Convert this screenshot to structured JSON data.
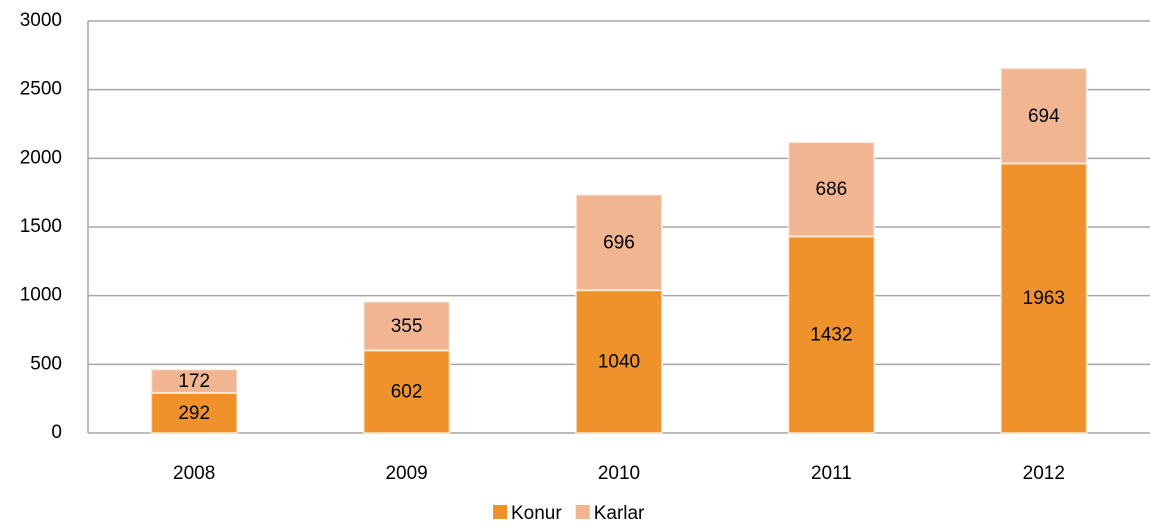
{
  "chart_data": {
    "type": "stacked_bar",
    "categories": [
      "2008",
      "2009",
      "2010",
      "2011",
      "2012"
    ],
    "series": [
      {
        "name": "Konur",
        "color": "#f0922c",
        "values": [
          292,
          602,
          1040,
          1432,
          1963
        ]
      },
      {
        "name": "Karlar",
        "color": "#f2b592",
        "values": [
          172,
          355,
          696,
          686,
          694
        ]
      }
    ],
    "ylim": [
      0,
      3000
    ],
    "yticks": [
      0,
      500,
      1000,
      1500,
      2000,
      2500,
      3000
    ],
    "grid": true,
    "legend": "bottom"
  }
}
